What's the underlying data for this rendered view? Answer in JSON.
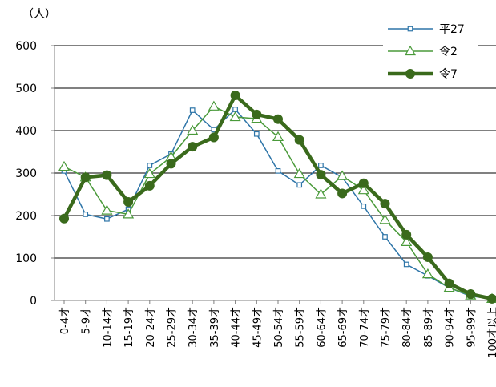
{
  "chart_data": {
    "type": "line",
    "y_unit_label": "（人）",
    "ylim": [
      0,
      600
    ],
    "y_ticks": [
      "0",
      "100",
      "200",
      "300",
      "400",
      "500",
      "600"
    ],
    "grid": "horizontal",
    "legend_position": "top-right",
    "categories": [
      "0-4才",
      "5-9才",
      "10-14才",
      "15-19才",
      "20-24才",
      "25-29才",
      "30-34才",
      "35-39才",
      "40-44才",
      "45-49才",
      "50-54才",
      "55-59才",
      "60-64才",
      "65-69才",
      "70-74才",
      "75-79才",
      "80-84才",
      "85-89才",
      "90-94才",
      "95-99才",
      "100才以上"
    ],
    "series": [
      {
        "name": "平27",
        "color": "#2e75a8",
        "marker": "square",
        "values": [
          305,
          203,
          192,
          215,
          318,
          345,
          448,
          402,
          450,
          392,
          305,
          272,
          318,
          290,
          222,
          150,
          85,
          58,
          30,
          10,
          5
        ]
      },
      {
        "name": "令2",
        "color": "#4a9a3a",
        "marker": "triangle",
        "values": [
          315,
          290,
          212,
          203,
          298,
          338,
          400,
          457,
          432,
          428,
          385,
          298,
          250,
          293,
          260,
          190,
          138,
          62,
          30,
          12,
          4
        ]
      },
      {
        "name": "令7",
        "color": "#3a6a1c",
        "marker": "circle",
        "values": [
          193,
          290,
          295,
          232,
          270,
          322,
          362,
          384,
          483,
          438,
          427,
          378,
          296,
          252,
          276,
          228,
          155,
          102,
          40,
          15,
          4
        ]
      }
    ]
  }
}
